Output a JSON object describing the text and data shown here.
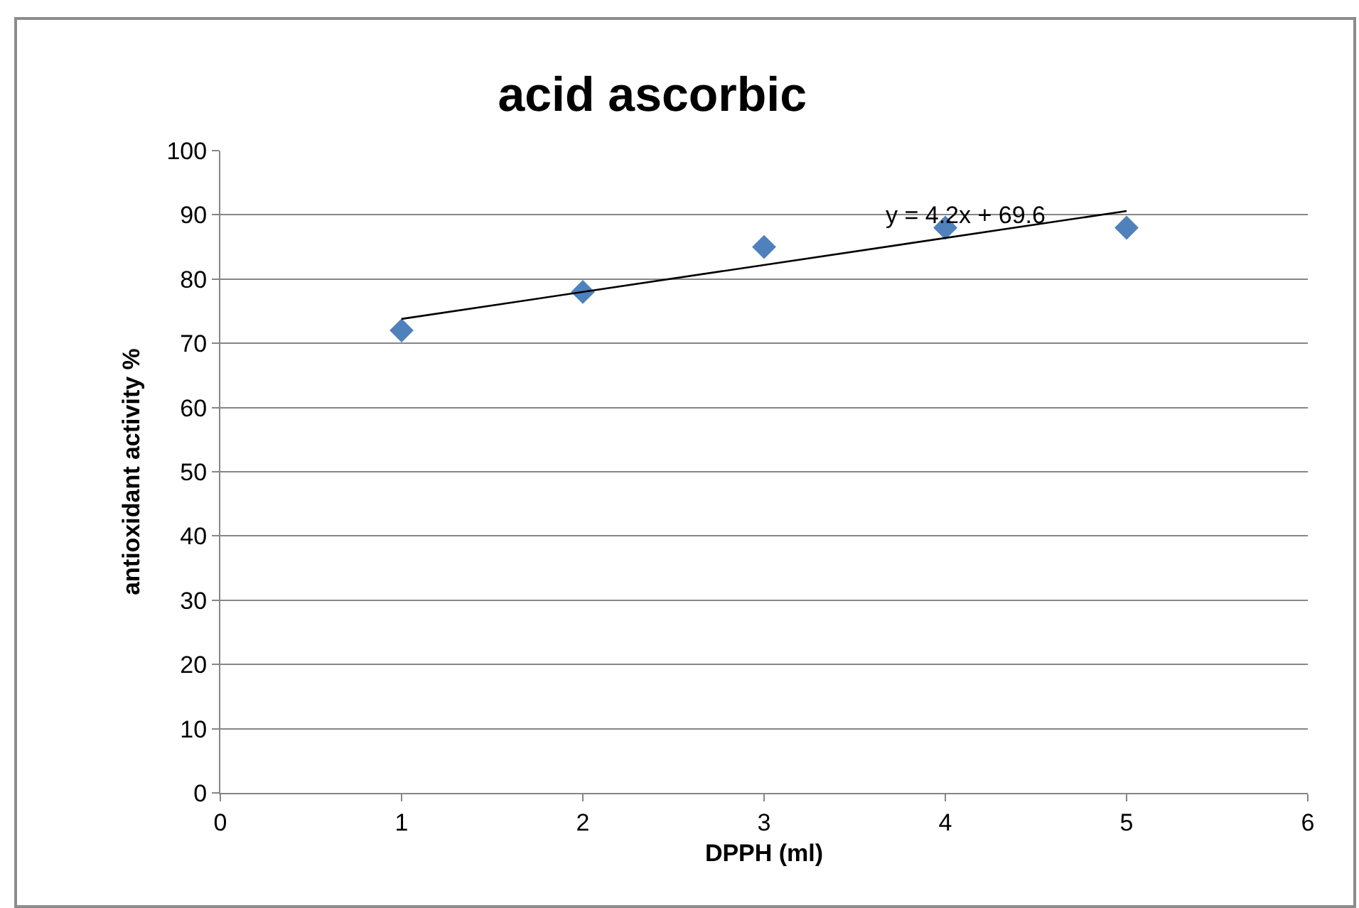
{
  "chart_data": {
    "type": "scatter",
    "title": "acid ascorbic",
    "xlabel": "DPPH (ml)",
    "ylabel": "antioxidant activity %",
    "x": [
      1,
      2,
      3,
      4,
      5
    ],
    "series": [
      {
        "type": "scatter",
        "color": "#4f81bd",
        "marker": "diamond",
        "values": [
          72,
          78,
          85,
          88,
          88
        ]
      },
      {
        "type": "line",
        "color": "#000000",
        "marker": "none",
        "line_style": "solid",
        "x": [
          1,
          5
        ],
        "values": [
          73.8,
          90.6
        ]
      }
    ],
    "annotations": [
      "y = 4.2x + 69.6"
    ],
    "xlim": [
      0,
      6
    ],
    "xticks": [
      0,
      1,
      2,
      3,
      4,
      5,
      6
    ],
    "ylim": [
      0,
      100
    ],
    "yticks": [
      0,
      10,
      20,
      30,
      40,
      50,
      60,
      70,
      80,
      90,
      100
    ],
    "grid": "y"
  }
}
